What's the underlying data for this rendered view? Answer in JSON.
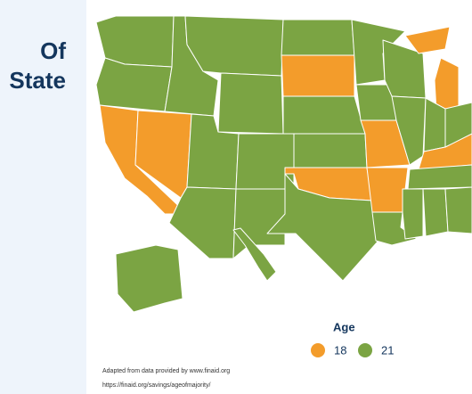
{
  "header": {
    "title_lines": [
      "Of",
      "State"
    ]
  },
  "legend": {
    "title": "Age",
    "items": [
      {
        "value": 18,
        "color": "#f39c2b"
      },
      {
        "value": 21,
        "color": "#7ba443"
      }
    ]
  },
  "map": {
    "region_values": [
      21,
      21,
      18,
      18,
      21,
      21,
      21,
      21,
      21,
      21,
      21,
      21,
      18,
      21,
      21,
      18,
      21,
      21,
      21,
      18,
      18,
      21,
      21,
      18,
      18,
      21,
      21,
      18,
      21,
      21,
      21,
      21,
      21,
      21,
      21
    ]
  },
  "footer": {
    "source": "Adapted from data provided by www.finaid.org",
    "url": "https://finaid.org/savings/ageofmajority/"
  }
}
